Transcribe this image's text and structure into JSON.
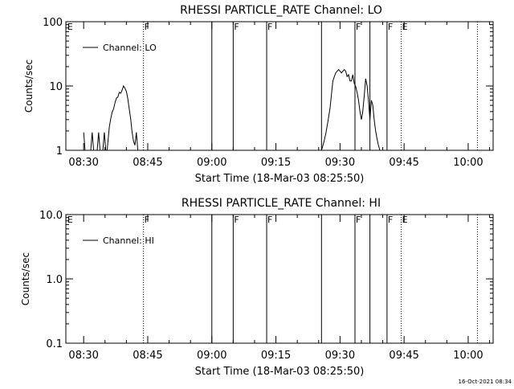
{
  "footer_timestamp": "16-Oct-2021 08:34",
  "chart_data": [
    {
      "type": "line",
      "title": "RHESSI PARTICLE_RATE Channel: LO",
      "xlabel": "Start Time (18-Mar-03 08:25:50)",
      "ylabel": "Counts/sec",
      "y_scale": "log",
      "ylim": [
        1,
        100
      ],
      "y_ticks": [
        {
          "value": 1,
          "label": "1"
        },
        {
          "value": 10,
          "label": "10"
        },
        {
          "value": 100,
          "label": "100"
        }
      ],
      "xlim": [
        "08:25:50",
        "10:05:50"
      ],
      "x_ticks": [
        {
          "value": "08:30",
          "label": "08:30"
        },
        {
          "value": "08:45",
          "label": "08:45"
        },
        {
          "value": "09:00",
          "label": "09:00"
        },
        {
          "value": "09:15",
          "label": "09:15"
        },
        {
          "value": "09:30",
          "label": "09:30"
        },
        {
          "value": "09:45",
          "label": "09:45"
        },
        {
          "value": "10:00",
          "label": "10:00"
        }
      ],
      "legend": {
        "label": "Channel: LO",
        "placement": "top-left"
      },
      "flags": [
        {
          "time": "08:26:00",
          "label": "E",
          "style": "none"
        },
        {
          "time": "08:44:00",
          "label": "F",
          "style": "dotted"
        },
        {
          "time": "09:00:00",
          "label": "",
          "style": "solid"
        },
        {
          "time": "09:05:00",
          "label": "F",
          "style": "solid"
        },
        {
          "time": "09:12:50",
          "label": "F",
          "style": "solid"
        },
        {
          "time": "09:25:40",
          "label": "",
          "style": "solid"
        },
        {
          "time": "09:33:30",
          "label": "F",
          "style": "solid"
        },
        {
          "time": "09:37:00",
          "label": "",
          "style": "solid"
        },
        {
          "time": "09:41:00",
          "label": "F",
          "style": "solid"
        },
        {
          "time": "09:44:20",
          "label": "E",
          "style": "dotted"
        },
        {
          "time": "10:02:10",
          "label": "",
          "style": "dotted"
        }
      ],
      "series": [
        {
          "name": "Channel: LO",
          "segments": [
            [
              [
                "08:30:00",
                1.9
              ],
              [
                "08:30:20",
                1
              ],
              [
                "08:30:40",
                1
              ],
              [
                "08:31:40",
                1
              ],
              [
                "08:32:00",
                1.9
              ],
              [
                "08:32:20",
                1
              ],
              [
                "08:33:10",
                1
              ],
              [
                "08:33:30",
                1.9
              ],
              [
                "08:33:50",
                1
              ],
              [
                "08:34:30",
                1
              ],
              [
                "08:34:50",
                1.9
              ],
              [
                "08:35:10",
                1
              ],
              [
                "08:35:30",
                1
              ],
              [
                "08:36:00",
                2.3
              ],
              [
                "08:36:20",
                3.1
              ],
              [
                "08:36:40",
                3.9
              ],
              [
                "08:37:00",
                4.4
              ],
              [
                "08:37:20",
                5.5
              ],
              [
                "08:37:40",
                6.5
              ],
              [
                "08:38:00",
                6.7
              ],
              [
                "08:38:20",
                8
              ],
              [
                "08:38:40",
                7.7
              ],
              [
                "08:39:00",
                8.6
              ],
              [
                "08:39:20",
                10
              ],
              [
                "08:39:40",
                9.2
              ],
              [
                "08:40:00",
                8.2
              ],
              [
                "08:40:20",
                6.4
              ],
              [
                "08:40:40",
                4.4
              ],
              [
                "08:41:00",
                3.1
              ],
              [
                "08:41:20",
                1.9
              ],
              [
                "08:41:40",
                1.4
              ],
              [
                "08:42:00",
                1.2
              ],
              [
                "08:42:20",
                1.9
              ],
              [
                "08:42:40",
                1
              ]
            ],
            [
              [
                "09:25:40",
                1
              ],
              [
                "09:26:10",
                1.3
              ],
              [
                "09:26:40",
                1.8
              ],
              [
                "09:27:10",
                2.8
              ],
              [
                "09:27:40",
                4.6
              ],
              [
                "09:28:00",
                7.4
              ],
              [
                "09:28:20",
                12
              ],
              [
                "09:28:40",
                14
              ],
              [
                "09:29:00",
                16
              ],
              [
                "09:29:20",
                17
              ],
              [
                "09:29:40",
                18
              ],
              [
                "09:30:00",
                17
              ],
              [
                "09:30:20",
                16
              ],
              [
                "09:30:40",
                17
              ],
              [
                "09:31:00",
                18
              ],
              [
                "09:31:20",
                17
              ],
              [
                "09:31:40",
                14
              ],
              [
                "09:32:00",
                15
              ],
              [
                "09:32:20",
                12
              ],
              [
                "09:32:40",
                12
              ],
              [
                "09:33:00",
                15
              ],
              [
                "09:33:20",
                11
              ],
              [
                "09:33:40",
                9.8
              ],
              [
                "09:34:00",
                8
              ],
              [
                "09:34:20",
                6
              ],
              [
                "09:34:40",
                4
              ],
              [
                "09:35:00",
                3
              ],
              [
                "09:35:20",
                4
              ],
              [
                "09:35:40",
                7
              ],
              [
                "09:36:00",
                13
              ],
              [
                "09:36:20",
                10
              ],
              [
                "09:36:40",
                6
              ],
              [
                "09:37:00",
                3
              ],
              [
                "09:37:20",
                6
              ],
              [
                "09:37:40",
                5
              ],
              [
                "09:38:00",
                3
              ],
              [
                "09:38:20",
                2
              ],
              [
                "09:38:40",
                1.5
              ],
              [
                "09:39:00",
                1.2
              ],
              [
                "09:39:20",
                1
              ]
            ]
          ]
        }
      ]
    },
    {
      "type": "line",
      "title": "RHESSI PARTICLE_RATE Channel: HI",
      "xlabel": "Start Time (18-Mar-03 08:25:50)",
      "ylabel": "Counts/sec",
      "y_scale": "log",
      "ylim": [
        0.1,
        10
      ],
      "y_ticks": [
        {
          "value": 0.1,
          "label": "0.1"
        },
        {
          "value": 1,
          "label": "1.0"
        },
        {
          "value": 10,
          "label": "10.0"
        }
      ],
      "xlim": [
        "08:25:50",
        "10:05:50"
      ],
      "x_ticks": [
        {
          "value": "08:30",
          "label": "08:30"
        },
        {
          "value": "08:45",
          "label": "08:45"
        },
        {
          "value": "09:00",
          "label": "09:00"
        },
        {
          "value": "09:15",
          "label": "09:15"
        },
        {
          "value": "09:30",
          "label": "09:30"
        },
        {
          "value": "09:45",
          "label": "09:45"
        },
        {
          "value": "10:00",
          "label": "10:00"
        }
      ],
      "legend": {
        "label": "Channel: HI",
        "placement": "top-left"
      },
      "flags": [
        {
          "time": "08:26:00",
          "label": "E",
          "style": "none"
        },
        {
          "time": "08:44:00",
          "label": "F",
          "style": "dotted"
        },
        {
          "time": "09:00:00",
          "label": "",
          "style": "solid"
        },
        {
          "time": "09:05:00",
          "label": "F",
          "style": "solid"
        },
        {
          "time": "09:12:50",
          "label": "F",
          "style": "solid"
        },
        {
          "time": "09:25:40",
          "label": "",
          "style": "solid"
        },
        {
          "time": "09:33:30",
          "label": "F",
          "style": "solid"
        },
        {
          "time": "09:37:00",
          "label": "",
          "style": "solid"
        },
        {
          "time": "09:41:00",
          "label": "F",
          "style": "solid"
        },
        {
          "time": "09:44:20",
          "label": "E",
          "style": "dotted"
        },
        {
          "time": "10:02:10",
          "label": "",
          "style": "dotted"
        }
      ],
      "series": [
        {
          "name": "Channel: HI",
          "segments": []
        }
      ]
    }
  ]
}
